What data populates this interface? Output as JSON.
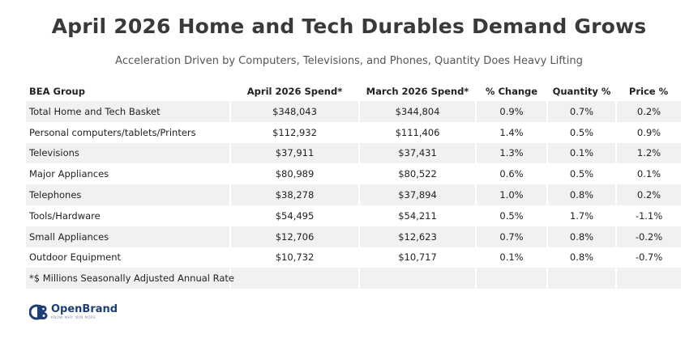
{
  "title": "April 2026 Home and Tech Durables Demand Grows",
  "subtitle": "Acceleration Driven by Computers, Televisions, and Phones, Quantity Does Heavy Lifting",
  "table": {
    "headers": [
      "BEA Group",
      "April 2026 Spend*",
      "March 2026 Spend*",
      "% Change",
      "Quantity %",
      "Price %"
    ],
    "rows": [
      [
        "Total Home and Tech Basket",
        "$348,043",
        "$344,804",
        "0.9%",
        "0.7%",
        "0.2%"
      ],
      [
        "Personal computers/tablets/Printers",
        "$112,932",
        "$111,406",
        "1.4%",
        "0.5%",
        "0.9%"
      ],
      [
        "Televisions",
        "$37,911",
        "$37,431",
        "1.3%",
        "0.1%",
        "1.2%"
      ],
      [
        "Major Appliances",
        "$80,989",
        "$80,522",
        "0.6%",
        "0.5%",
        "0.1%"
      ],
      [
        "Telephones",
        "$38,278",
        "$37,894",
        "1.0%",
        "0.8%",
        "0.2%"
      ],
      [
        "Tools/Hardware",
        "$54,495",
        "$54,211",
        "0.5%",
        "1.7%",
        "-1.1%"
      ],
      [
        "Small Appliances",
        "$12,706",
        "$12,623",
        "0.7%",
        "0.8%",
        "-0.2%"
      ],
      [
        "Outdoor Equipment",
        "$10,732",
        "$10,717",
        "0.1%",
        "0.8%",
        "-0.7%"
      ]
    ],
    "footnote": "*$ Millions Seasonally Adjusted Annual Rate"
  },
  "logo": {
    "name": "OpenBrand",
    "tagline": "KNOW WHY. WIN MORE.",
    "icon": "openbrand-logo-icon",
    "color": "#1d3f73"
  }
}
